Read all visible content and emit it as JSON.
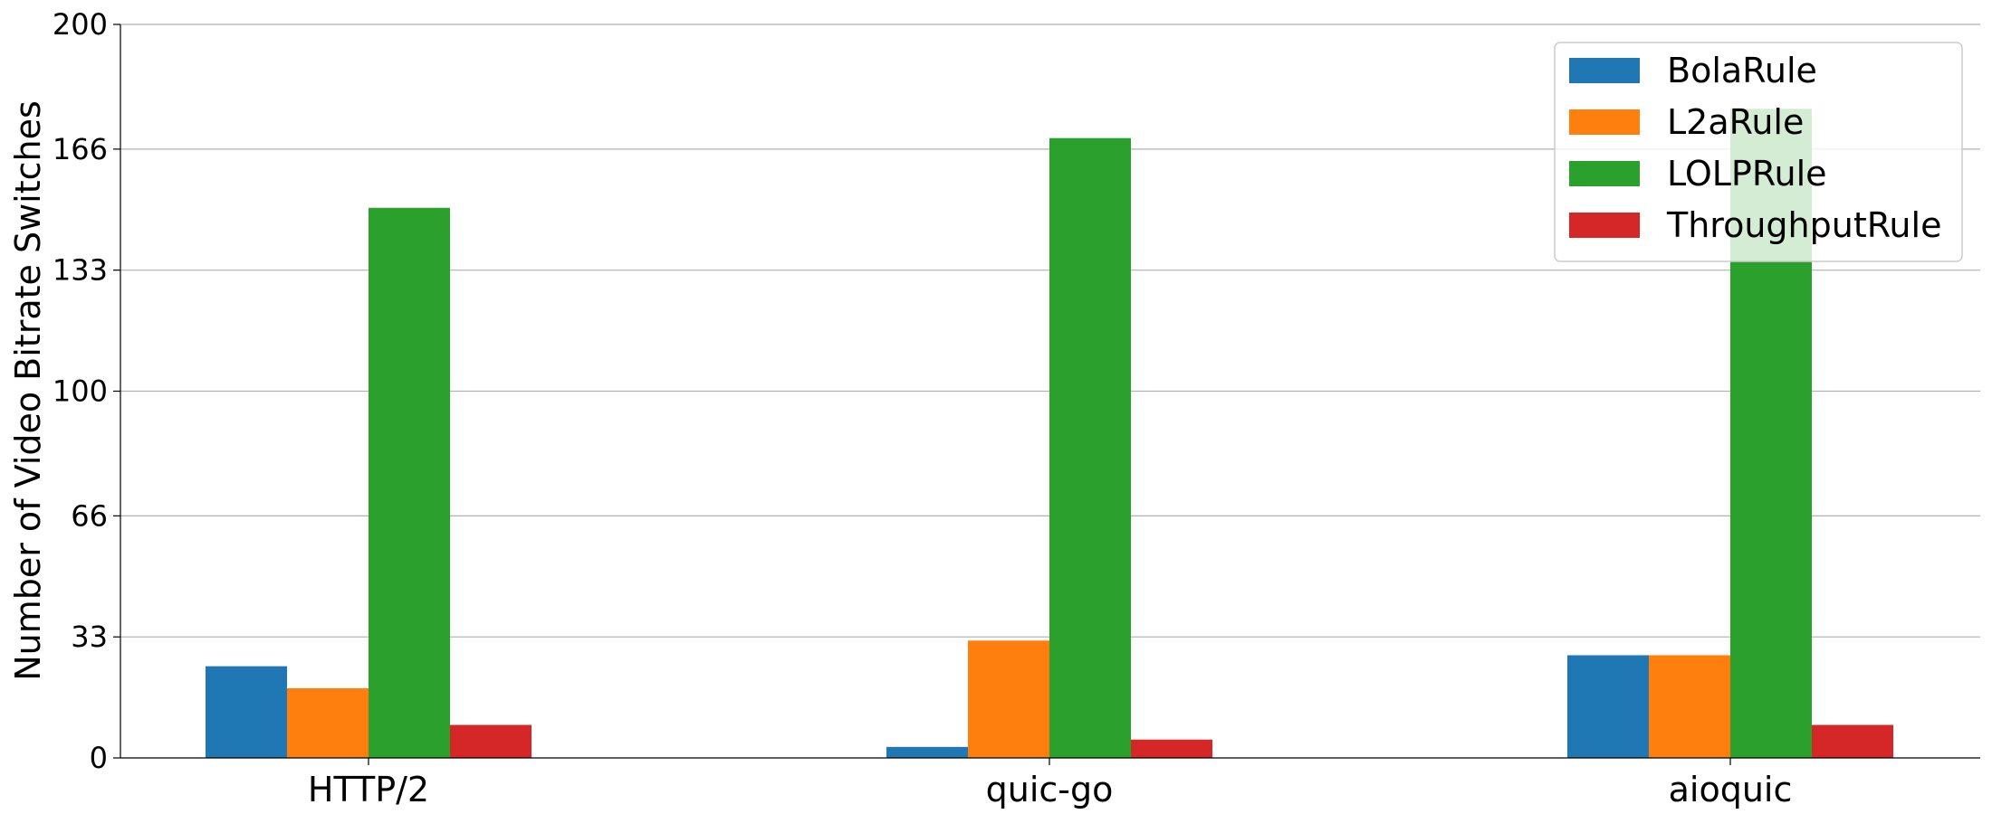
{
  "chart_data": {
    "type": "bar",
    "title": "",
    "xlabel": "",
    "ylabel": "Number of Video Bitrate Switches",
    "categories": [
      "HTTP/2",
      "quic-go",
      "aioquic"
    ],
    "series": [
      {
        "name": "BolaRule",
        "color": "#1f77b4",
        "values": [
          25,
          3,
          28
        ]
      },
      {
        "name": "L2aRule",
        "color": "#ff7f0e",
        "values": [
          19,
          32,
          28
        ]
      },
      {
        "name": "LOLPRule",
        "color": "#2ca02c",
        "values": [
          150,
          169,
          177
        ]
      },
      {
        "name": "ThroughputRule",
        "color": "#d62728",
        "values": [
          9,
          5,
          9
        ]
      }
    ],
    "yticks": [
      0,
      33,
      66,
      100,
      133,
      166,
      200
    ],
    "ylim": [
      0,
      200
    ],
    "grid": "horizontal",
    "legend_position": "top-right"
  }
}
